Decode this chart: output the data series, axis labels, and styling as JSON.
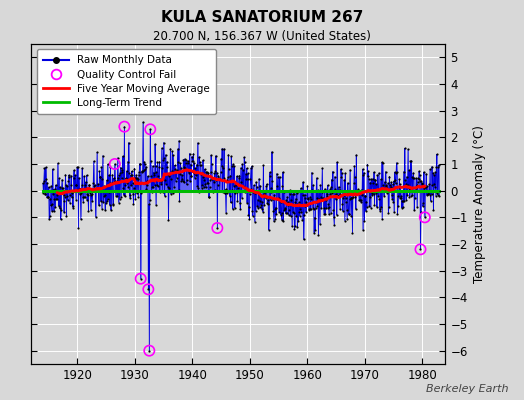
{
  "title": "KULA SANATORIUM 267",
  "subtitle": "20.700 N, 156.367 W (United States)",
  "ylabel": "Temperature Anomaly (°C)",
  "watermark": "Berkeley Earth",
  "ylim": [
    -6.5,
    5.5
  ],
  "xlim": [
    1912,
    1984
  ],
  "xticks": [
    1920,
    1930,
    1940,
    1950,
    1960,
    1970,
    1980
  ],
  "yticks": [
    -6,
    -5,
    -4,
    -3,
    -2,
    -1,
    0,
    1,
    2,
    3,
    4,
    5
  ],
  "bg_color": "#d8d8d8",
  "plot_bg_color": "#d8d8d8",
  "raw_color": "#0000dd",
  "stem_color": "#4444ff",
  "raw_marker_color": "#000000",
  "qc_color": "#ff00ff",
  "ma_color": "#ff0000",
  "trend_color": "#00bb00",
  "seed": 42,
  "start_year": 1914.0,
  "end_year": 1983.0,
  "noise_std": 0.55,
  "ma_window": 60
}
